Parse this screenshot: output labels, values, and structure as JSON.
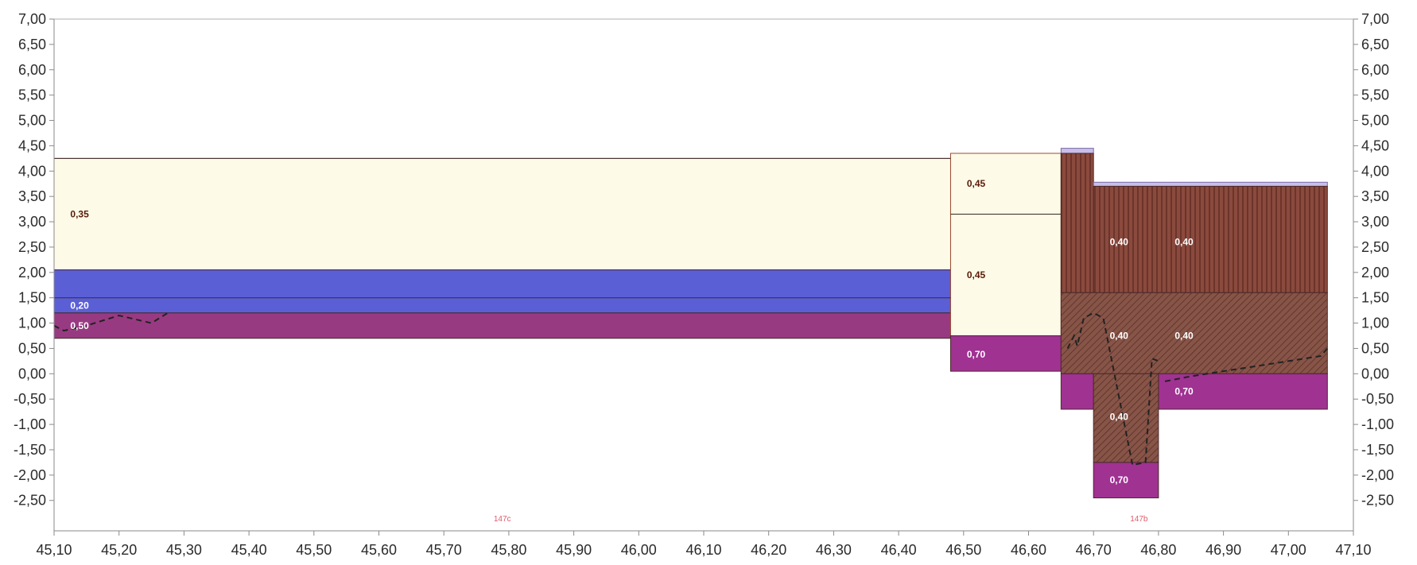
{
  "colors": {
    "background": "#ffffff",
    "axis": "#8a8a8a",
    "light_sand": "#fdfbe7",
    "blue": "#5b5fd6",
    "purple": "#983a82",
    "brown_vertical": "#8b4a3e",
    "brown_hatched": "#875448",
    "magenta": "#a03292",
    "lavender": "#c9bfe8",
    "dashed_line": "#222222"
  },
  "chart_data": {
    "type": "area",
    "title": "",
    "xlabel": "",
    "ylabel": "",
    "xlim": [
      45.1,
      47.1
    ],
    "ylim": [
      -3.1,
      7.0
    ],
    "x_ticks": [
      "45,10",
      "45,20",
      "45,30",
      "45,40",
      "45,50",
      "45,60",
      "45,70",
      "45,80",
      "45,90",
      "46,00",
      "46,10",
      "46,20",
      "46,30",
      "46,40",
      "46,50",
      "46,60",
      "46,70",
      "46,80",
      "46,90",
      "47,00",
      "47,10"
    ],
    "y_ticks": [
      "7,00",
      "6,50",
      "6,00",
      "5,50",
      "5,00",
      "4,50",
      "4,00",
      "3,50",
      "3,00",
      "2,50",
      "2,00",
      "1,50",
      "1,00",
      "0,50",
      "0,00",
      "-0,50",
      "-1,00",
      "-1,50",
      "-2,00",
      "-2,50"
    ],
    "y_tick_values": [
      7.0,
      6.5,
      6.0,
      5.5,
      5.0,
      4.5,
      4.0,
      3.5,
      3.0,
      2.5,
      2.0,
      1.5,
      1.0,
      0.5,
      0.0,
      -0.5,
      -1.0,
      -1.5,
      -2.0,
      -2.5
    ],
    "layers": [
      {
        "x0": 45.1,
        "x1": 46.48,
        "y0": 2.05,
        "y1": 4.25,
        "fill": "light_sand"
      },
      {
        "x0": 45.1,
        "x1": 46.48,
        "y0": 1.2,
        "y1": 2.05,
        "fill": "blue"
      },
      {
        "x0": 45.1,
        "x1": 46.48,
        "y0": 0.7,
        "y1": 1.2,
        "fill": "purple"
      },
      {
        "x0": 46.48,
        "x1": 46.65,
        "y0": 3.15,
        "y1": 4.35,
        "fill": "light_sand"
      },
      {
        "x0": 46.48,
        "x1": 46.65,
        "y0": 0.75,
        "y1": 3.15,
        "fill": "light_sand"
      },
      {
        "x0": 46.48,
        "x1": 46.65,
        "y0": 0.05,
        "y1": 0.75,
        "fill": "magenta"
      },
      {
        "x0": 46.65,
        "x1": 46.7,
        "y0": 4.35,
        "y1": 4.45,
        "fill": "lavender"
      },
      {
        "x0": 46.65,
        "x1": 46.7,
        "y0": 1.6,
        "y1": 4.35,
        "fill": "brown_vertical"
      },
      {
        "x0": 46.7,
        "x1": 47.06,
        "y0": 3.7,
        "y1": 3.78,
        "fill": "lavender"
      },
      {
        "x0": 46.7,
        "x1": 47.06,
        "y0": 1.6,
        "y1": 3.7,
        "fill": "brown_vertical"
      },
      {
        "x0": 46.65,
        "x1": 47.06,
        "y0": 0.0,
        "y1": 1.6,
        "fill": "brown_hatched"
      },
      {
        "x0": 46.65,
        "x1": 46.7,
        "y0": -0.7,
        "y1": 0.0,
        "fill": "magenta"
      },
      {
        "x0": 46.8,
        "x1": 47.06,
        "y0": -0.7,
        "y1": 0.0,
        "fill": "magenta"
      },
      {
        "x0": 46.7,
        "x1": 46.8,
        "y0": -1.75,
        "y1": 0.0,
        "fill": "brown_hatched"
      },
      {
        "x0": 46.7,
        "x1": 46.8,
        "y0": -2.45,
        "y1": -1.75,
        "fill": "magenta"
      }
    ],
    "boundary_lines": [
      {
        "x0": 45.1,
        "x1": 46.48,
        "y": 4.25
      },
      {
        "x0": 45.1,
        "x1": 46.48,
        "y": 1.5
      },
      {
        "x0": 46.48,
        "x1": 46.65,
        "y": 3.15
      }
    ],
    "layer_labels": [
      {
        "text": "0,35",
        "x": 45.125,
        "y": 3.15,
        "color": "#5a1a0a"
      },
      {
        "text": "0,20",
        "x": 45.125,
        "y": 1.35,
        "color": "#ffffff"
      },
      {
        "text": "0,50",
        "x": 45.125,
        "y": 0.95,
        "color": "#ffffff"
      },
      {
        "text": "0,45",
        "x": 46.505,
        "y": 3.75,
        "color": "#5a1a0a"
      },
      {
        "text": "0,45",
        "x": 46.505,
        "y": 1.95,
        "color": "#5a1a0a"
      },
      {
        "text": "0,70",
        "x": 46.505,
        "y": 0.38,
        "color": "#ffffff"
      },
      {
        "text": "0,40",
        "x": 46.725,
        "y": 2.6,
        "color": "#ffffff"
      },
      {
        "text": "0,40",
        "x": 46.825,
        "y": 2.6,
        "color": "#ffffff"
      },
      {
        "text": "0,40",
        "x": 46.725,
        "y": 0.75,
        "color": "#ffffff"
      },
      {
        "text": "0,40",
        "x": 46.825,
        "y": 0.75,
        "color": "#ffffff"
      },
      {
        "text": "0,70",
        "x": 46.825,
        "y": -0.35,
        "color": "#ffffff"
      },
      {
        "text": "0,40",
        "x": 46.725,
        "y": -0.85,
        "color": "#ffffff"
      },
      {
        "text": "0,70",
        "x": 46.725,
        "y": -2.1,
        "color": "#ffffff"
      }
    ],
    "reference_labels": [
      {
        "text": "147c",
        "x": 45.79,
        "y": -2.85
      },
      {
        "text": "147b",
        "x": 46.77,
        "y": -2.85
      }
    ],
    "dashed_series": [
      {
        "x": [
          45.1,
          45.115,
          45.15,
          45.2,
          45.25,
          45.275
        ],
        "y": [
          0.95,
          0.85,
          0.95,
          1.15,
          1.0,
          1.2
        ]
      },
      {
        "x": [
          46.66,
          46.67,
          46.675,
          46.685,
          46.7,
          46.715,
          46.76,
          46.78,
          46.79,
          46.8
        ],
        "y": [
          0.5,
          0.75,
          0.55,
          1.1,
          1.2,
          1.1,
          -1.8,
          -1.75,
          0.3,
          0.25
        ]
      },
      {
        "x": [
          46.81,
          46.85,
          46.9,
          46.95,
          47.0,
          47.05,
          47.06
        ],
        "y": [
          -0.15,
          -0.05,
          0.05,
          0.15,
          0.25,
          0.35,
          0.5
        ]
      }
    ]
  }
}
